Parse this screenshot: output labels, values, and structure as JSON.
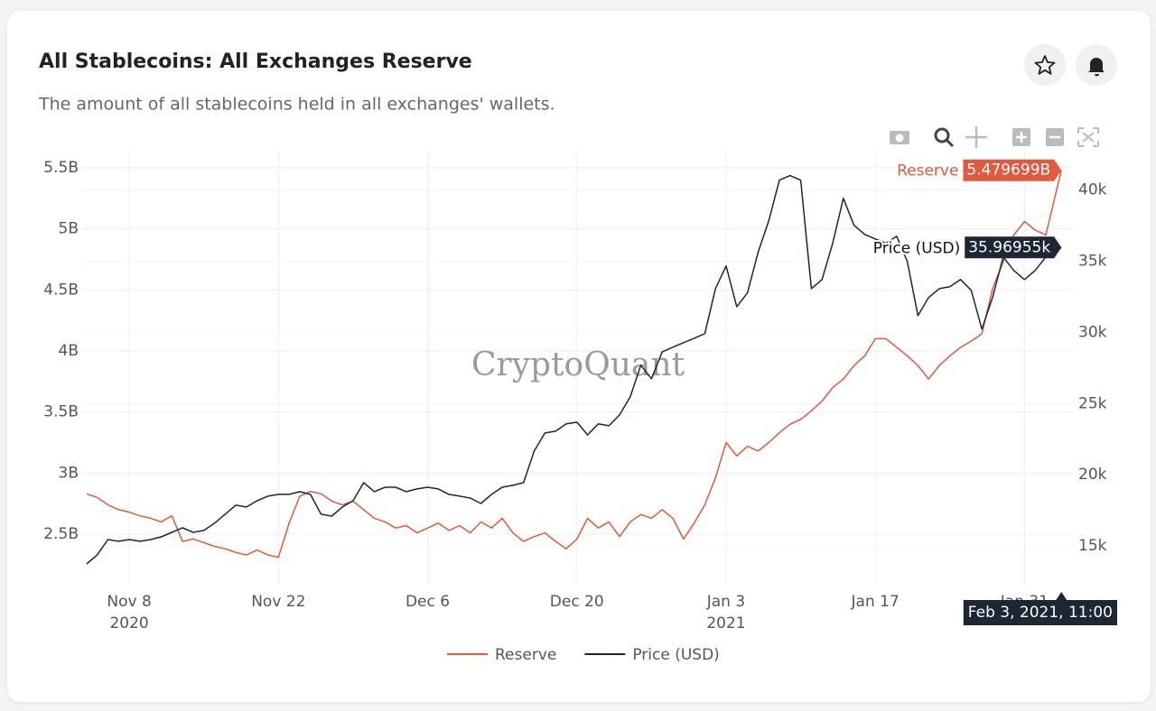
{
  "header": {
    "title": "All Stablecoins: All Exchanges Reserve",
    "subtitle": "The amount of all stablecoins held in all exchanges' wallets."
  },
  "watermark": "CryptoQuant",
  "chart_data": {
    "type": "line",
    "x": [
      "2020-11-04",
      "2020-11-05",
      "2020-11-06",
      "2020-11-07",
      "2020-11-08",
      "2020-11-09",
      "2020-11-10",
      "2020-11-11",
      "2020-11-12",
      "2020-11-13",
      "2020-11-14",
      "2020-11-15",
      "2020-11-16",
      "2020-11-17",
      "2020-11-18",
      "2020-11-19",
      "2020-11-20",
      "2020-11-21",
      "2020-11-22",
      "2020-11-23",
      "2020-11-24",
      "2020-11-25",
      "2020-11-26",
      "2020-11-27",
      "2020-11-28",
      "2020-11-29",
      "2020-11-30",
      "2020-12-01",
      "2020-12-02",
      "2020-12-03",
      "2020-12-04",
      "2020-12-05",
      "2020-12-06",
      "2020-12-07",
      "2020-12-08",
      "2020-12-09",
      "2020-12-10",
      "2020-12-11",
      "2020-12-12",
      "2020-12-13",
      "2020-12-14",
      "2020-12-15",
      "2020-12-16",
      "2020-12-17",
      "2020-12-18",
      "2020-12-19",
      "2020-12-20",
      "2020-12-21",
      "2020-12-22",
      "2020-12-23",
      "2020-12-24",
      "2020-12-25",
      "2020-12-26",
      "2020-12-27",
      "2020-12-28",
      "2020-12-29",
      "2020-12-30",
      "2020-12-31",
      "2021-01-01",
      "2021-01-02",
      "2021-01-03",
      "2021-01-04",
      "2021-01-05",
      "2021-01-06",
      "2021-01-07",
      "2021-01-08",
      "2021-01-09",
      "2021-01-10",
      "2021-01-11",
      "2021-01-12",
      "2021-01-13",
      "2021-01-14",
      "2021-01-15",
      "2021-01-16",
      "2021-01-17",
      "2021-01-18",
      "2021-01-19",
      "2021-01-20",
      "2021-01-21",
      "2021-01-22",
      "2021-01-23",
      "2021-01-24",
      "2021-01-25",
      "2021-01-26",
      "2021-01-27",
      "2021-01-28",
      "2021-01-29",
      "2021-01-30",
      "2021-01-31",
      "2021-02-01",
      "2021-02-02",
      "2021-02-03T11:00"
    ],
    "series": [
      {
        "name": "Reserve",
        "color": "#df5a3e",
        "values": [
          2.83,
          2.8,
          2.74,
          2.7,
          2.68,
          2.65,
          2.63,
          2.6,
          2.65,
          2.44,
          2.46,
          2.43,
          2.4,
          2.38,
          2.35,
          2.33,
          2.37,
          2.33,
          2.31,
          2.59,
          2.81,
          2.85,
          2.83,
          2.77,
          2.74,
          2.77,
          2.7,
          2.63,
          2.6,
          2.55,
          2.57,
          2.51,
          2.55,
          2.59,
          2.53,
          2.57,
          2.51,
          2.6,
          2.55,
          2.63,
          2.51,
          2.44,
          2.48,
          2.51,
          2.44,
          2.38,
          2.46,
          2.63,
          2.55,
          2.6,
          2.48,
          2.6,
          2.66,
          2.63,
          2.7,
          2.63,
          2.46,
          2.59,
          2.74,
          2.96,
          3.25,
          3.14,
          3.22,
          3.18,
          3.25,
          3.33,
          3.4,
          3.44,
          3.51,
          3.59,
          3.7,
          3.77,
          3.88,
          3.96,
          4.1,
          4.1,
          4.03,
          3.96,
          3.88,
          3.77,
          3.88,
          3.96,
          4.03,
          4.08,
          4.14,
          4.51,
          4.73,
          4.95,
          5.06,
          4.99,
          4.95,
          5.479699
        ]
      },
      {
        "name": "Price (USD)",
        "color": "#1c2733",
        "axis": "y2",
        "values": [
          13.73,
          14.37,
          15.44,
          15.32,
          15.44,
          15.32,
          15.44,
          15.63,
          15.95,
          16.27,
          15.95,
          16.08,
          16.59,
          17.22,
          17.86,
          17.73,
          18.17,
          18.49,
          18.62,
          18.62,
          18.81,
          18.62,
          17.22,
          17.09,
          17.73,
          18.17,
          19.44,
          18.81,
          19.12,
          19.12,
          18.81,
          19.0,
          19.12,
          19.0,
          18.62,
          18.49,
          18.36,
          17.98,
          18.62,
          19.12,
          19.25,
          19.44,
          21.66,
          22.93,
          23.06,
          23.57,
          23.69,
          22.8,
          23.57,
          23.44,
          24.2,
          25.47,
          27.69,
          26.74,
          28.64,
          28.96,
          29.28,
          29.59,
          29.91,
          33.08,
          34.67,
          31.81,
          32.77,
          35.62,
          37.84,
          40.7,
          41.02,
          40.7,
          33.08,
          33.72,
          36.26,
          39.43,
          37.53,
          36.89,
          36.57,
          36.26,
          36.76,
          34.99,
          31.18,
          32.45,
          33.08,
          33.21,
          33.72,
          32.96,
          30.23,
          32.45,
          35.3,
          34.35,
          33.72,
          34.35,
          35.3,
          35.96955
        ]
      }
    ],
    "xlim": [
      "2020-11-03T12:00",
      "2021-02-04T13:00"
    ],
    "xticks": [
      {
        "value": "2020-11-08",
        "label": "Nov 8",
        "year": "2020"
      },
      {
        "value": "2020-11-22",
        "label": "Nov 22"
      },
      {
        "value": "2020-12-06",
        "label": "Dec 6"
      },
      {
        "value": "2020-12-20",
        "label": "Dec 20"
      },
      {
        "value": "2021-01-03",
        "label": "Jan 3",
        "year": "2021"
      },
      {
        "value": "2021-01-17",
        "label": "Jan 17"
      },
      {
        "value": "2021-01-31",
        "label": "Jan 31"
      }
    ],
    "ylim": [
      2.086,
      5.655
    ],
    "yticks": [
      {
        "value": 2.5,
        "label": "2.5B"
      },
      {
        "value": 3,
        "label": "3B"
      },
      {
        "value": 3.5,
        "label": "3.5B"
      },
      {
        "value": 4,
        "label": "4B"
      },
      {
        "value": 4.5,
        "label": "4.5B"
      },
      {
        "value": 5,
        "label": "5B"
      },
      {
        "value": 5.5,
        "label": "5.5B"
      }
    ],
    "y2lim": [
      12.27,
      42.9
    ],
    "y2ticks": [
      {
        "value": 15,
        "label": "15k"
      },
      {
        "value": 20,
        "label": "20k"
      },
      {
        "value": 25,
        "label": "25k"
      },
      {
        "value": 30,
        "label": "30k"
      },
      {
        "value": 35,
        "label": "35k"
      },
      {
        "value": 40,
        "label": "40k"
      }
    ],
    "grid": true,
    "legend": "bottom",
    "hover": {
      "x_label": "Feb 3, 2021, 11:00",
      "labels": [
        {
          "value": 5.479699,
          "label": "5.479699B"
        },
        {
          "value": 35.96955,
          "label": "35.96955k"
        }
      ]
    }
  }
}
